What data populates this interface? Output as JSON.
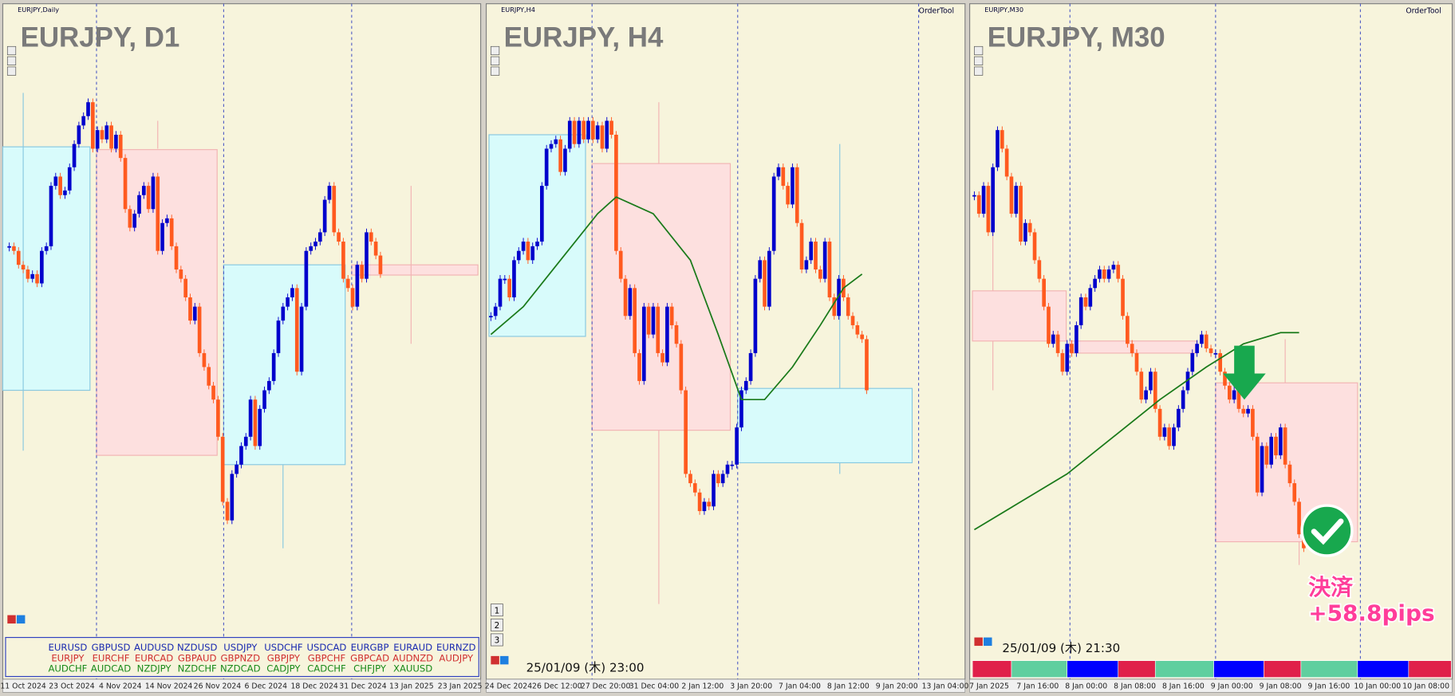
{
  "panels": [
    {
      "window_title": "EURJPY,Daily",
      "title": "EURJPY, D1",
      "ylim": [
        0,
        700
      ],
      "time_labels": [
        "11 Oct 2024",
        "23 Oct 2024",
        "4 Nov 2024",
        "14 Nov 2024",
        "26 Nov 2024",
        "6 Dec 2024",
        "18 Dec 2024",
        "31 Dec 2024",
        "13 Jan 2025",
        "23 Jan 2025"
      ],
      "closes": [
        435,
        430,
        415,
        410,
        400,
        405,
        395,
        430,
        435,
        500,
        510,
        490,
        495,
        520,
        545,
        565,
        575,
        590,
        540,
        560,
        550,
        565,
        540,
        555,
        530,
        475,
        455,
        470,
        490,
        500,
        475,
        510,
        430,
        460,
        465,
        435,
        410,
        400,
        380,
        355,
        370,
        320,
        305,
        285,
        270,
        230,
        160,
        140,
        190,
        200,
        220,
        230,
        270,
        220,
        260,
        280,
        290,
        320,
        355,
        370,
        380,
        390,
        300,
        370,
        430,
        435,
        440,
        450,
        485,
        500,
        450,
        440,
        400,
        390,
        370,
        415,
        400,
        450,
        440,
        425,
        405
      ]
    },
    {
      "window_title": "EURJPY,H4",
      "title": "EURJPY, H4",
      "order_tool": "OrderTool",
      "ylim": [
        0,
        700
      ],
      "time_labels": [
        "24 Dec 2024",
        "26 Dec 12:00",
        "27 Dec 20:00",
        "31 Dec 04:00",
        "2 Jan 12:00",
        "3 Jan 20:00",
        "7 Jan 04:00",
        "8 Jan 12:00",
        "9 Jan 20:00",
        "13 Jan 04:00"
      ],
      "closes": [
        360,
        370,
        400,
        400,
        380,
        420,
        430,
        440,
        420,
        435,
        440,
        500,
        540,
        545,
        550,
        515,
        540,
        570,
        545,
        570,
        550,
        570,
        550,
        565,
        540,
        570,
        555,
        430,
        400,
        360,
        390,
        320,
        290,
        370,
        340,
        370,
        320,
        310,
        370,
        350,
        330,
        280,
        190,
        180,
        170,
        150,
        160,
        155,
        190,
        180,
        190,
        200,
        200,
        240,
        280,
        290,
        320,
        400,
        420,
        370,
        430,
        510,
        520,
        500,
        480,
        520,
        460,
        410,
        420,
        440,
        410,
        400,
        440,
        380,
        360,
        400,
        380,
        360,
        350,
        340,
        335,
        280
      ],
      "ma": {
        "x": [
          0,
          7,
          15,
          23,
          27,
          35,
          43,
          49,
          54,
          59,
          65,
          71,
          76,
          80
        ],
        "values": [
          340,
          370,
          420,
          470,
          488,
          470,
          420,
          340,
          270,
          270,
          305,
          350,
          390,
          405
        ]
      },
      "buttons": [
        "1",
        "2",
        "3"
      ],
      "timestamp": "25/01/09 (木) 23:00"
    },
    {
      "window_title": "EURJPY,M30",
      "title": "EURJPY, M30",
      "order_tool": "OrderTool",
      "ylim": [
        0,
        700
      ],
      "time_labels": [
        "7 Jan 2025",
        "7 Jan 16:00",
        "8 Jan 00:00",
        "8 Jan 08:00",
        "8 Jan 16:00",
        "9 Jan 00:00",
        "9 Jan 08:00",
        "9 Jan 16:00",
        "10 Jan 00:00",
        "10 Jan 08:00"
      ],
      "closes": [
        490,
        470,
        500,
        450,
        520,
        560,
        540,
        510,
        470,
        500,
        440,
        460,
        450,
        420,
        400,
        370,
        330,
        340,
        320,
        300,
        330,
        320,
        350,
        380,
        370,
        390,
        400,
        410,
        400,
        410,
        415,
        400,
        360,
        330,
        320,
        300,
        270,
        280,
        300,
        260,
        230,
        240,
        220,
        240,
        260,
        280,
        300,
        320,
        330,
        340,
        325,
        320,
        320,
        300,
        285,
        270,
        280,
        260,
        255,
        260,
        230,
        170,
        220,
        200,
        230,
        210,
        240,
        200,
        180,
        160,
        125,
        110
      ],
      "ma": {
        "x": [
          0,
          10,
          20,
          30,
          40,
          50,
          58,
          66,
          70
        ],
        "values": [
          130,
          160,
          190,
          230,
          270,
          305,
          330,
          342,
          342
        ]
      },
      "timestamp": "25/01/09 (木) 21:30",
      "annotation": [
        "決済",
        "+58.8pips"
      ]
    }
  ],
  "symbols": [
    [
      "EURUSD",
      "GBPUSD",
      "AUDUSD",
      "NZDUSD",
      "USDJPY",
      "USDCHF",
      "USDCAD",
      "EURGBP",
      "EURAUD",
      "EURNZD"
    ],
    [
      "EURJPY",
      "EURCHF",
      "EURCAD",
      "GBPAUD",
      "GBPNZD",
      "GBPJPY",
      "GBPCHF",
      "GBPCAD",
      "AUDNZD",
      "AUDJPY"
    ],
    [
      "AUDCHF",
      "AUDCAD",
      "NZDJPY",
      "NZDCHF",
      "NZDCAD",
      "CADJPY",
      "CADCHF",
      "CHFJPY",
      "XAUUSD"
    ]
  ]
}
